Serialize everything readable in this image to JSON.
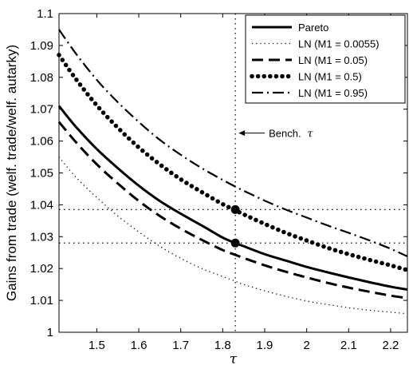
{
  "chart_data": {
    "type": "line",
    "title": "",
    "xlabel": "τ",
    "ylabel": "Gains from trade (welf. trade/welf. autarky)",
    "xlim": [
      1.41,
      2.24
    ],
    "ylim": [
      1.0,
      1.1
    ],
    "xticks": [
      1.5,
      1.6,
      1.7,
      1.8,
      1.9,
      2,
      2.1,
      2.2
    ],
    "xtick_labels": [
      "1.5",
      "1.6",
      "1.7",
      "1.8",
      "1.9",
      "2",
      "2.1",
      "2.2"
    ],
    "yticks": [
      1,
      1.01,
      1.02,
      1.03,
      1.04,
      1.05,
      1.06,
      1.07,
      1.08,
      1.09,
      1.1
    ],
    "ytick_labels": [
      "1",
      "1.01",
      "1.02",
      "1.03",
      "1.04",
      "1.05",
      "1.06",
      "1.07",
      "1.08",
      "1.09",
      "1.1"
    ],
    "grid": false,
    "legend_position": "top-right",
    "x": [
      1.41,
      1.45,
      1.5,
      1.55,
      1.6,
      1.65,
      1.7,
      1.75,
      1.8,
      1.83,
      1.85,
      1.9,
      1.95,
      2.0,
      2.05,
      2.1,
      2.15,
      2.2,
      2.24
    ],
    "series": [
      {
        "name": "Pareto",
        "style": "solid",
        "values": [
          1.071,
          1.0645,
          1.0575,
          1.0515,
          1.046,
          1.0412,
          1.0372,
          1.0335,
          1.0297,
          1.028,
          1.027,
          1.0245,
          1.0225,
          1.0205,
          1.0188,
          1.0172,
          1.0157,
          1.0143,
          1.0134
        ]
      },
      {
        "name": "LN (M1 = 0.0055)",
        "style": "dotted",
        "values": [
          1.055,
          1.0487,
          1.0423,
          1.0365,
          1.0315,
          1.027,
          1.0232,
          1.02,
          1.0175,
          1.016,
          1.015,
          1.013,
          1.0113,
          1.0098,
          1.0087,
          1.0077,
          1.0069,
          1.0063,
          1.0058
        ]
      },
      {
        "name": "LN (M1 = 0.05)",
        "style": "dashed",
        "values": [
          1.066,
          1.0597,
          1.0527,
          1.0467,
          1.0412,
          1.0365,
          1.0325,
          1.029,
          1.0258,
          1.0243,
          1.0233,
          1.021,
          1.019,
          1.0172,
          1.0155,
          1.014,
          1.0127,
          1.0115,
          1.0107
        ]
      },
      {
        "name": "LN (M1 = 0.5)",
        "style": "dots",
        "values": [
          1.087,
          1.0795,
          1.0712,
          1.0642,
          1.058,
          1.0527,
          1.048,
          1.044,
          1.0402,
          1.0383,
          1.037,
          1.034,
          1.0312,
          1.0288,
          1.0265,
          1.0245,
          1.0227,
          1.021,
          1.0195
        ]
      },
      {
        "name": "LN (M1 = 0.95)",
        "style": "dash-dot",
        "values": [
          1.095,
          1.0875,
          1.0792,
          1.0722,
          1.066,
          1.0604,
          1.0557,
          1.0515,
          1.0478,
          1.0457,
          1.0444,
          1.0413,
          1.0385,
          1.036,
          1.0335,
          1.0312,
          1.0288,
          1.0262,
          1.0238
        ]
      }
    ],
    "reference_lines": {
      "vertical_x": 1.83,
      "horizontal_y": [
        1.0385,
        1.028
      ]
    },
    "markers": [
      {
        "x": 1.83,
        "y": 1.0385
      },
      {
        "x": 1.83,
        "y": 1.028
      }
    ],
    "annotation": {
      "text": "Bench.",
      "symbol": "τ",
      "x": 1.83,
      "y": 1.0625
    }
  }
}
